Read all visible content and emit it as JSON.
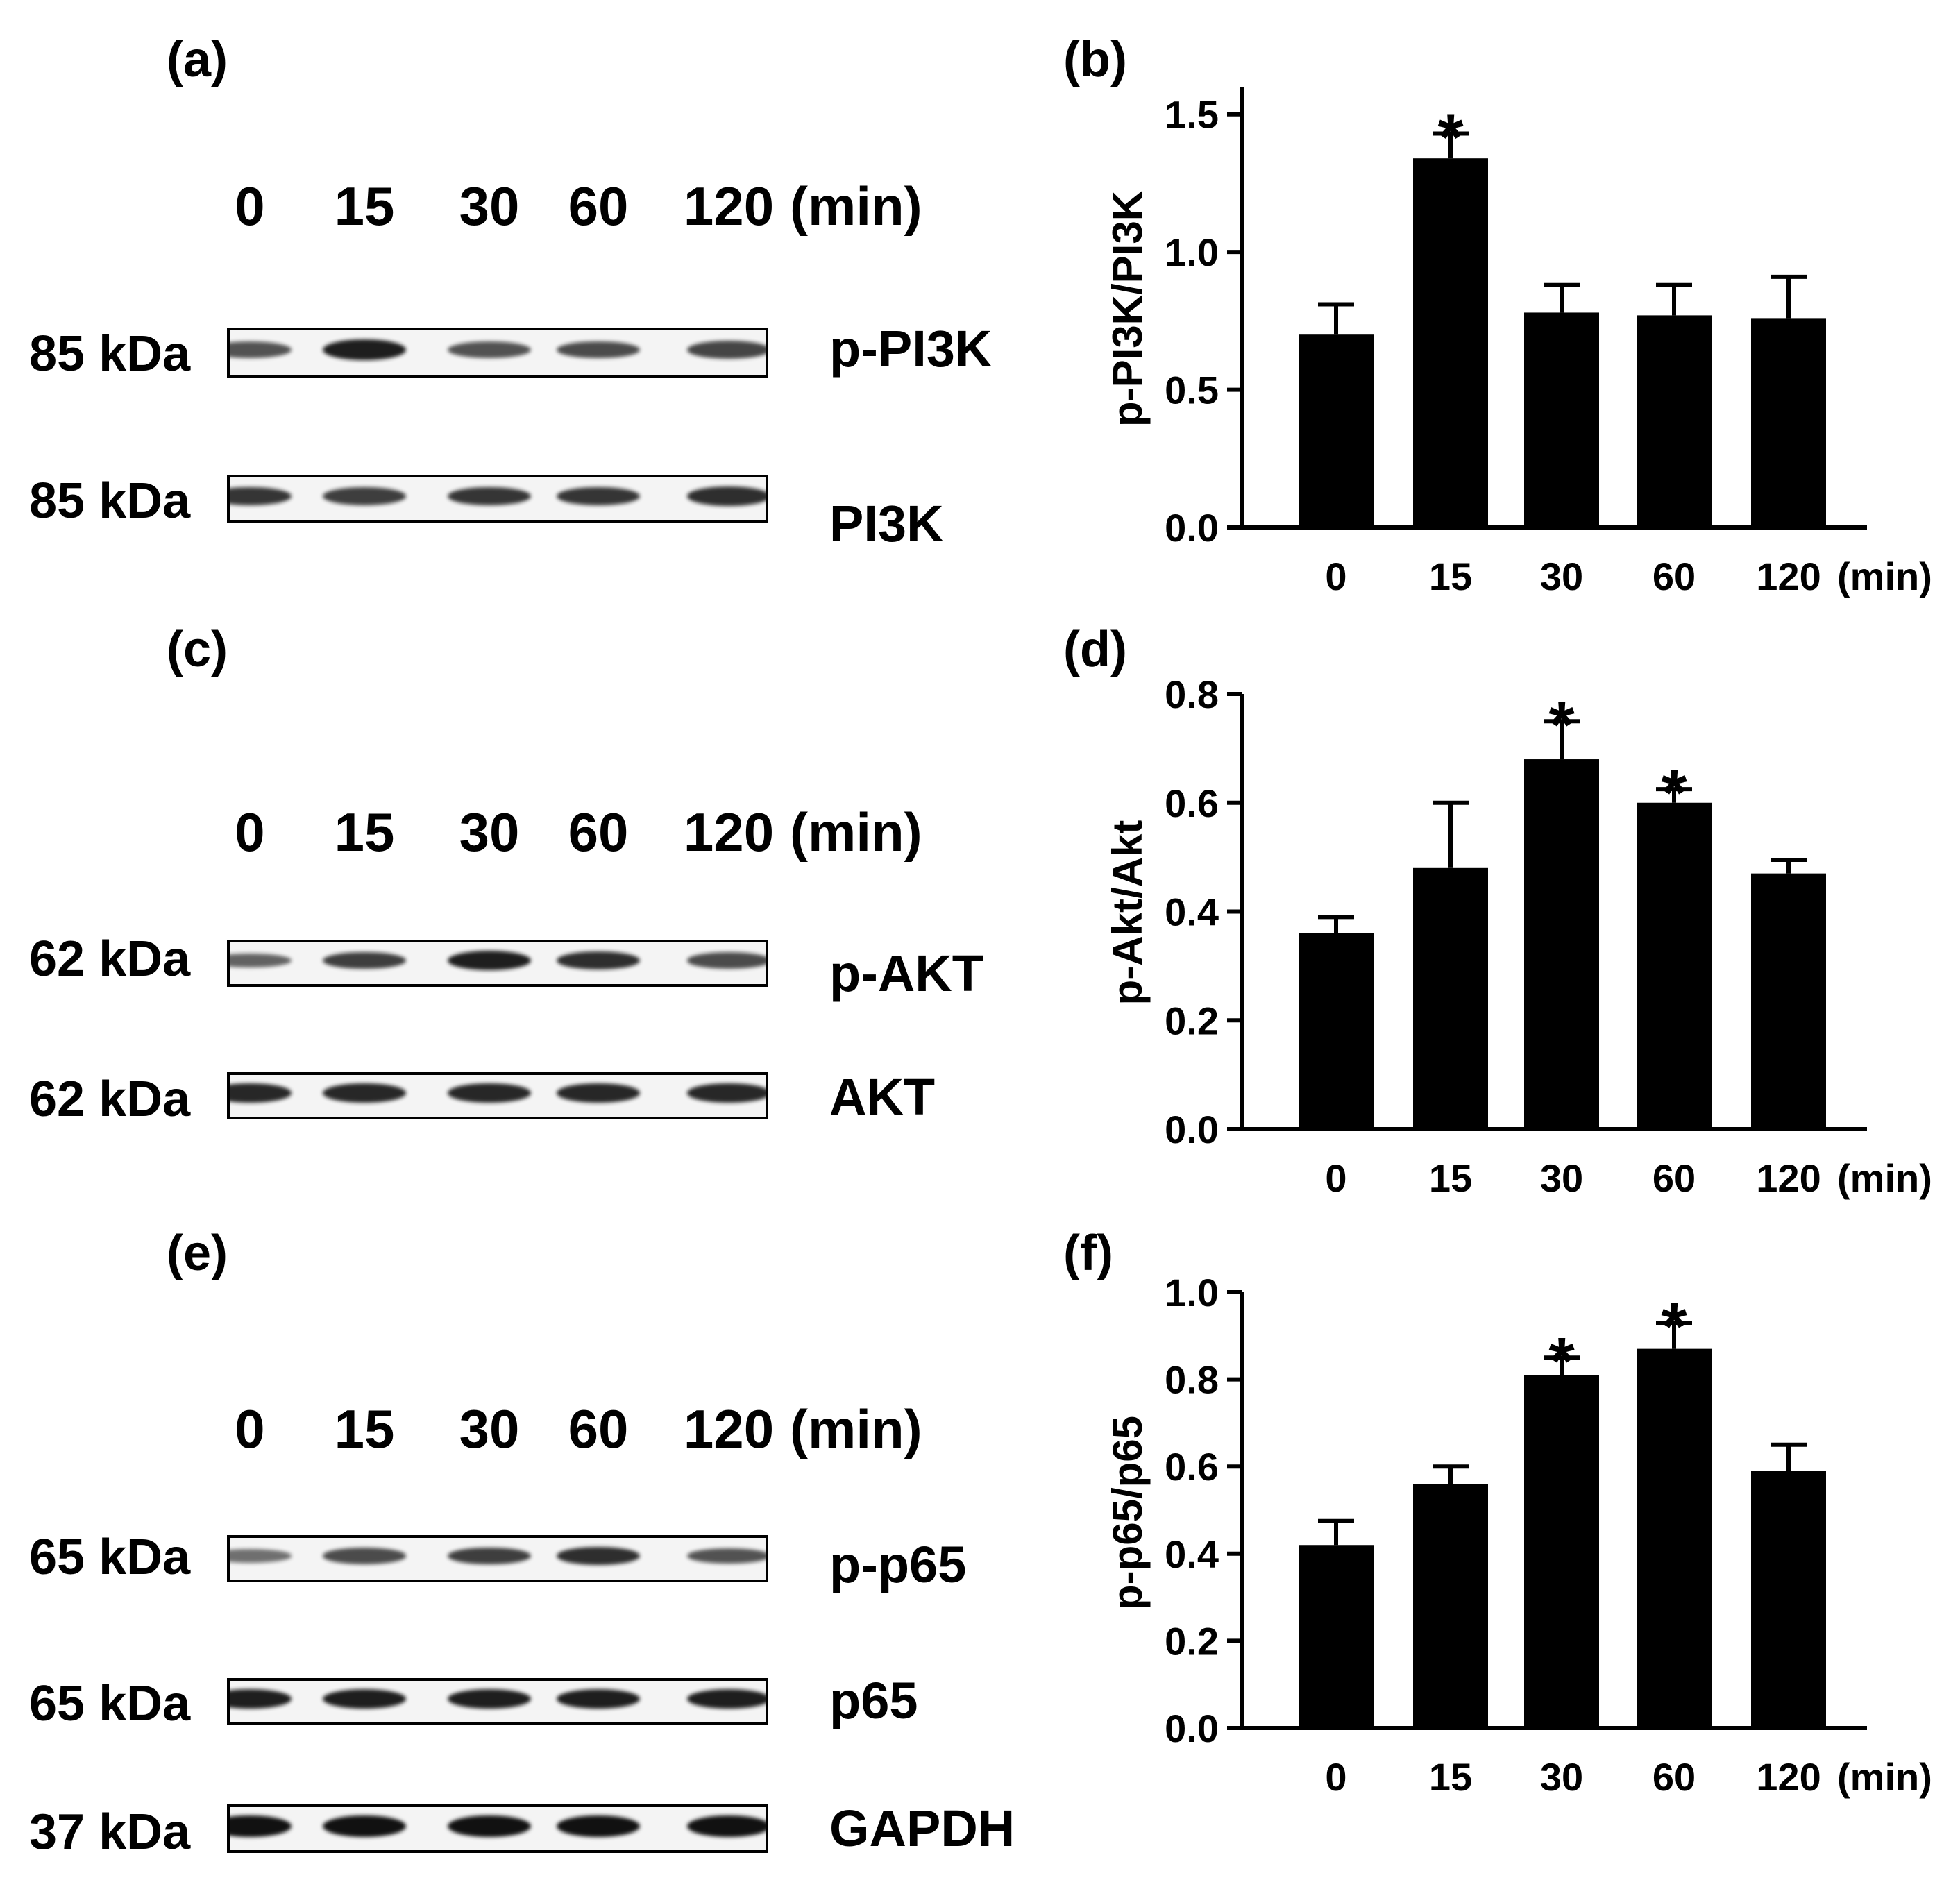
{
  "panels": {
    "a": "(a)",
    "b": "(b)",
    "c": "(c)",
    "d": "(d)",
    "e": "(e)",
    "f": "(f)"
  },
  "lanes": [
    "0",
    "15",
    "30",
    "60",
    "120"
  ],
  "unit_label": "(min)",
  "blots": {
    "a": [
      {
        "kda": "85 kDa",
        "protein": "p-PI3K",
        "intensity": [
          0.55,
          0.9,
          0.55,
          0.6,
          0.65
        ]
      },
      {
        "kda": "85 kDa",
        "protein": "PI3K",
        "intensity": [
          0.75,
          0.7,
          0.75,
          0.75,
          0.8
        ]
      }
    ],
    "c": [
      {
        "kda": "62 kDa",
        "protein": "p-AKT",
        "intensity": [
          0.45,
          0.7,
          0.9,
          0.8,
          0.6
        ]
      },
      {
        "kda": "62 kDa",
        "protein": "AKT",
        "intensity": [
          0.85,
          0.85,
          0.85,
          0.85,
          0.85
        ]
      }
    ],
    "e": [
      {
        "kda": "65 kDa",
        "protein": "p-p65",
        "intensity": [
          0.35,
          0.6,
          0.7,
          0.8,
          0.55
        ]
      },
      {
        "kda": "65 kDa",
        "protein": "p65",
        "intensity": [
          0.9,
          0.9,
          0.9,
          0.9,
          0.9
        ]
      },
      {
        "kda": "37 kDa",
        "protein": "GAPDH",
        "intensity": [
          1,
          1,
          1,
          1,
          1
        ]
      }
    ]
  },
  "chart_data": [
    {
      "type": "bar",
      "panel": "b",
      "categories": [
        "0",
        "15",
        "30",
        "60",
        "120"
      ],
      "values": [
        0.7,
        1.34,
        0.78,
        0.77,
        0.76
      ],
      "errors": [
        0.11,
        0.09,
        0.1,
        0.11,
        0.15
      ],
      "significance": [
        "",
        "*",
        "",
        "",
        ""
      ],
      "ylabel": "p-PI3K/PI3K",
      "xlabel": "(min)",
      "ylim": [
        0,
        1.6
      ],
      "yticks": [
        "0.0",
        "0.5",
        "1.0",
        "1.5"
      ],
      "ytick_values": [
        0,
        0.5,
        1.0,
        1.5
      ],
      "bar_color": "#000000"
    },
    {
      "type": "bar",
      "panel": "d",
      "categories": [
        "0",
        "15",
        "30",
        "60",
        "120"
      ],
      "values": [
        0.36,
        0.48,
        0.68,
        0.6,
        0.47
      ],
      "errors": [
        0.03,
        0.12,
        0.07,
        0.025,
        0.025
      ],
      "significance": [
        "",
        "",
        "*",
        "*",
        ""
      ],
      "ylabel": "p-Akt/Akt",
      "xlabel": "(min)",
      "ylim": [
        0,
        0.8
      ],
      "yticks": [
        "0.0",
        "0.2",
        "0.4",
        "0.6",
        "0.8"
      ],
      "ytick_values": [
        0,
        0.2,
        0.4,
        0.6,
        0.8
      ],
      "bar_color": "#000000"
    },
    {
      "type": "bar",
      "panel": "f",
      "categories": [
        "0",
        "15",
        "30",
        "60",
        "120"
      ],
      "values": [
        0.42,
        0.56,
        0.81,
        0.87,
        0.59
      ],
      "errors": [
        0.055,
        0.04,
        0.04,
        0.06,
        0.06
      ],
      "significance": [
        "",
        "",
        "*",
        "*",
        ""
      ],
      "ylabel": "p-p65/p65",
      "xlabel": "(min)",
      "ylim": [
        0,
        1.0
      ],
      "yticks": [
        "0.0",
        "0.2",
        "0.4",
        "0.6",
        "0.8",
        "1.0"
      ],
      "ytick_values": [
        0,
        0.2,
        0.4,
        0.6,
        0.8,
        1.0
      ],
      "bar_color": "#000000"
    }
  ]
}
